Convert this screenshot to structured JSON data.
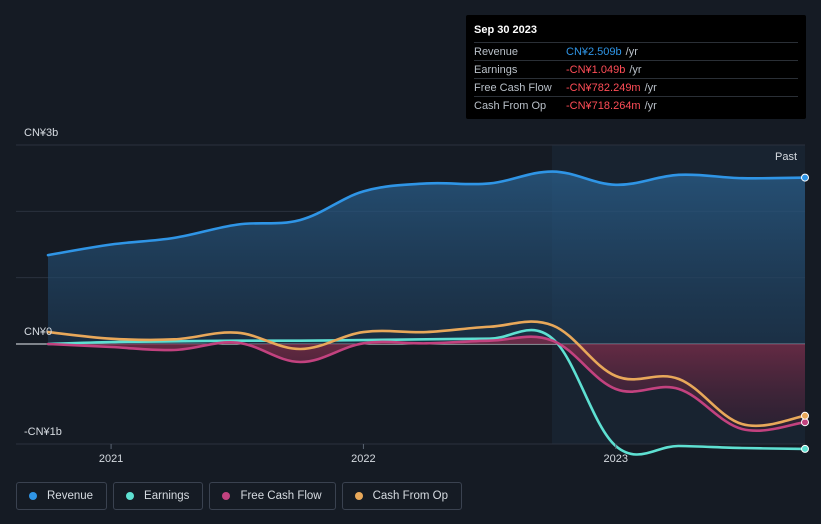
{
  "tooltip": {
    "date": "Sep 30 2023",
    "rows": [
      {
        "label": "Revenue",
        "value": "CN¥2.509b",
        "unit": "/yr"
      },
      {
        "label": "Earnings",
        "value": "-CN¥1.049b",
        "unit": "/yr"
      },
      {
        "label": "Free Cash Flow",
        "value": "-CN¥782.249m",
        "unit": "/yr"
      },
      {
        "label": "Cash From Op",
        "value": "-CN¥718.264m",
        "unit": "/yr"
      }
    ]
  },
  "past_label": "Past",
  "legend": [
    {
      "name": "Revenue",
      "color": "#2f95e6"
    },
    {
      "name": "Earnings",
      "color": "#5ee0d2"
    },
    {
      "name": "Free Cash Flow",
      "color": "#c2427f"
    },
    {
      "name": "Cash From Op",
      "color": "#e8a85a"
    }
  ],
  "chart_data": {
    "type": "line",
    "y_tick_labels": [
      "CN¥3b",
      "CN¥0",
      "-CN¥1b"
    ],
    "x_tick_labels": [
      "2021",
      "2022",
      "2023"
    ],
    "ylim": [
      -1.0,
      3.0
    ],
    "xlim": [
      2020.75,
      2023.75
    ],
    "past_start": 2022.75,
    "grid": "horizontal",
    "unit": "CN¥b",
    "series": [
      {
        "name": "Revenue",
        "color": "#2f95e6",
        "fill": true,
        "x": [
          2020.75,
          2021.0,
          2021.25,
          2021.5,
          2021.75,
          2022.0,
          2022.25,
          2022.5,
          2022.75,
          2023.0,
          2023.25,
          2023.5,
          2023.75
        ],
        "values": [
          1.34,
          1.5,
          1.6,
          1.8,
          1.87,
          2.3,
          2.42,
          2.42,
          2.6,
          2.4,
          2.55,
          2.5,
          2.509
        ]
      },
      {
        "name": "Earnings",
        "color": "#5ee0d2",
        "fill": false,
        "x": [
          2020.75,
          2021.0,
          2021.25,
          2021.5,
          2021.75,
          2022.0,
          2022.25,
          2022.5,
          2022.75,
          2023.0,
          2023.25,
          2023.5,
          2023.75
        ],
        "values": [
          0.0,
          0.03,
          0.04,
          0.05,
          0.05,
          0.06,
          0.07,
          0.08,
          0.08,
          -1.02,
          -1.02,
          -1.04,
          -1.049
        ]
      },
      {
        "name": "Free Cash Flow",
        "color": "#c2427f",
        "fill": true,
        "x": [
          2020.75,
          2021.0,
          2021.25,
          2021.5,
          2021.75,
          2022.0,
          2022.25,
          2022.5,
          2022.75,
          2023.0,
          2023.25,
          2023.5,
          2023.75
        ],
        "values": [
          0.0,
          -0.03,
          -0.06,
          0.02,
          -0.18,
          0.01,
          0.01,
          0.05,
          0.05,
          -0.45,
          -0.45,
          -0.85,
          -0.782
        ]
      },
      {
        "name": "Cash From Op",
        "color": "#e8a85a",
        "fill": false,
        "x": [
          2020.75,
          2021.0,
          2021.25,
          2021.5,
          2021.75,
          2022.0,
          2022.25,
          2022.5,
          2022.75,
          2023.0,
          2023.25,
          2023.5,
          2023.75
        ],
        "values": [
          0.18,
          0.08,
          0.07,
          0.17,
          -0.05,
          0.18,
          0.18,
          0.26,
          0.28,
          -0.32,
          -0.35,
          -0.8,
          -0.718
        ]
      }
    ]
  }
}
